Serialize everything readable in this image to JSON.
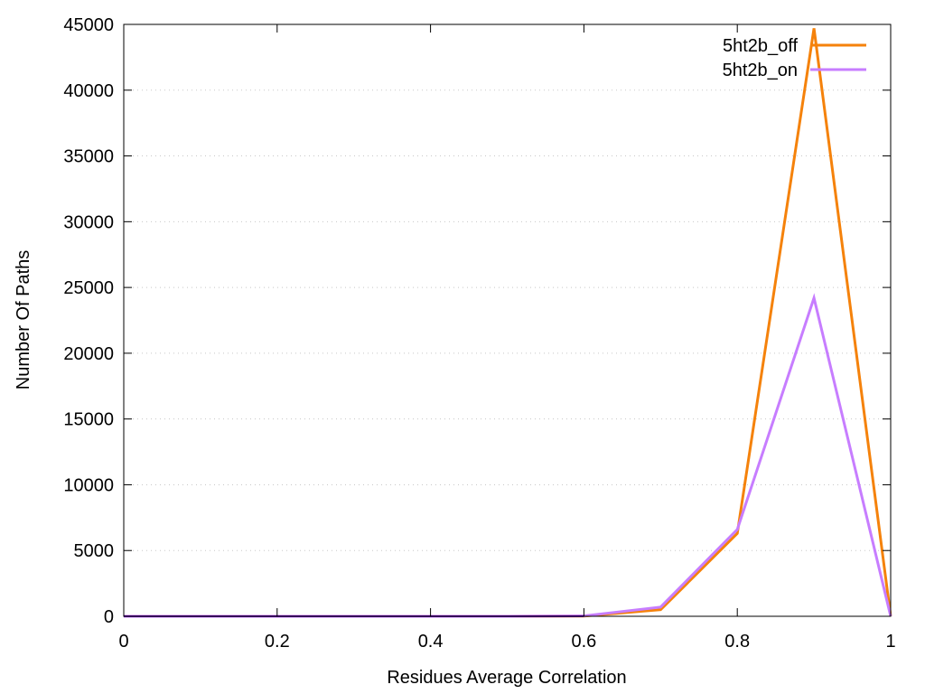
{
  "chart_data": {
    "type": "line",
    "title": "",
    "xlabel": "Residues Average Correlation",
    "ylabel": "Number Of Paths",
    "xlim": [
      0,
      1
    ],
    "ylim": [
      0,
      45000
    ],
    "xticks": [
      0,
      0.2,
      0.4,
      0.6,
      0.8,
      1
    ],
    "xtick_labels": [
      "0",
      "0.2",
      "0.4",
      "0.6",
      "0.8",
      "1"
    ],
    "yticks": [
      0,
      5000,
      10000,
      15000,
      20000,
      25000,
      30000,
      35000,
      40000,
      45000
    ],
    "ytick_labels": [
      "0",
      "5000",
      "10000",
      "15000",
      "20000",
      "25000",
      "30000",
      "35000",
      "40000",
      "45000"
    ],
    "grid": true,
    "legend_position": "top-right",
    "x": [
      0,
      0.1,
      0.2,
      0.3,
      0.4,
      0.5,
      0.6,
      0.7,
      0.8,
      0.9,
      1
    ],
    "series": [
      {
        "name": "5ht2b_off",
        "color": "#f5820b",
        "values": [
          0,
          0,
          0,
          0,
          0,
          0,
          20,
          500,
          6300,
          44700,
          0
        ]
      },
      {
        "name": "5ht2b_on",
        "color": "#c77dff",
        "values": [
          0,
          0,
          0,
          0,
          0,
          0,
          30,
          700,
          6600,
          24200,
          0
        ]
      }
    ]
  }
}
